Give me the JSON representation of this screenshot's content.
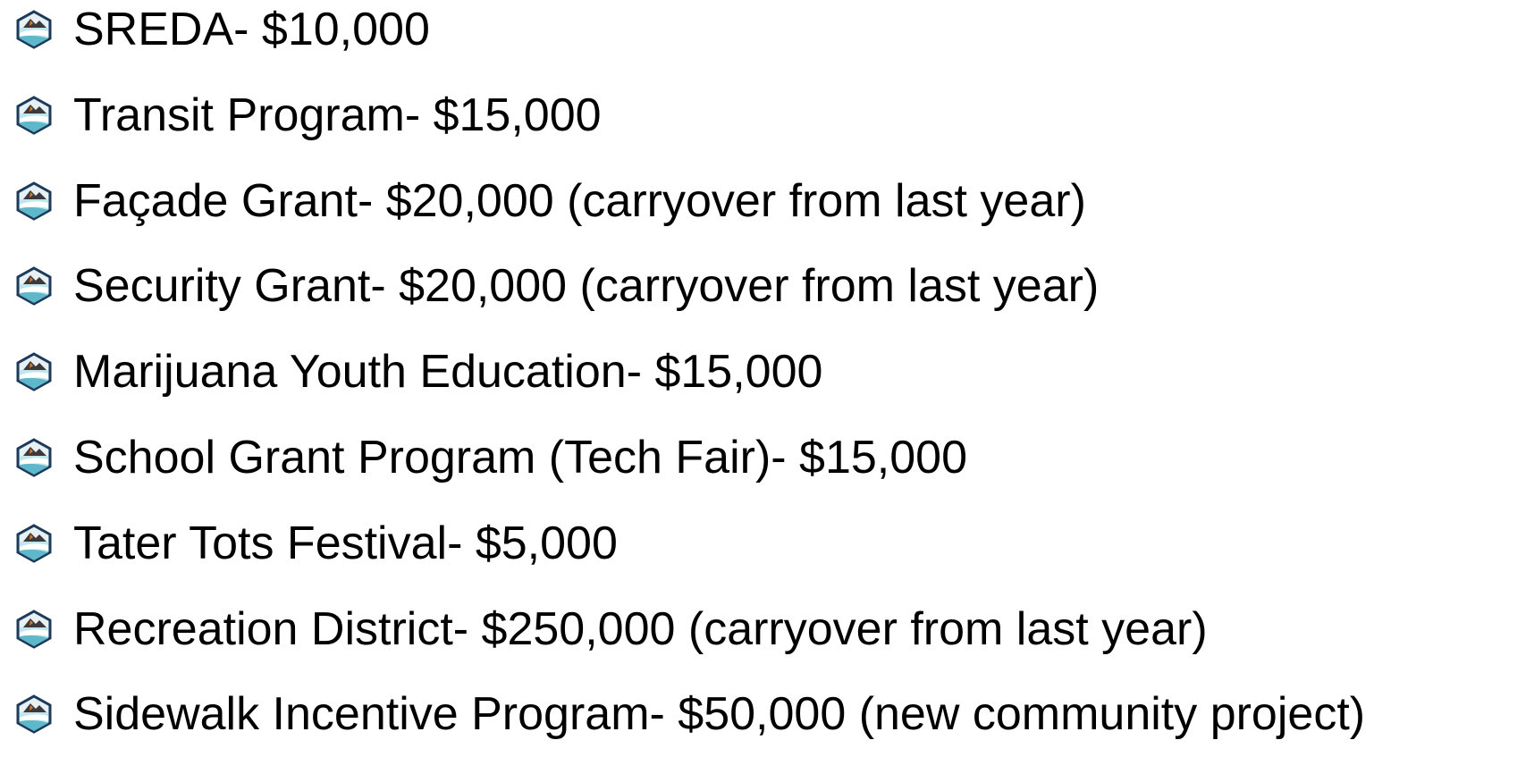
{
  "items": [
    "SREDA- $10,000",
    "Transit Program- $15,000",
    "Façade Grant- $20,000 (carryover from last year)",
    "Security Grant- $20,000 (carryover from last year)",
    "Marijuana Youth Education- $15,000",
    "School Grant Program (Tech Fair)- $15,000",
    "Tater Tots Festival- $5,000",
    "Recreation District- $250,000 (carryover from last year)",
    "Sidewalk Incentive Program- $50,000 (new community project)"
  ]
}
